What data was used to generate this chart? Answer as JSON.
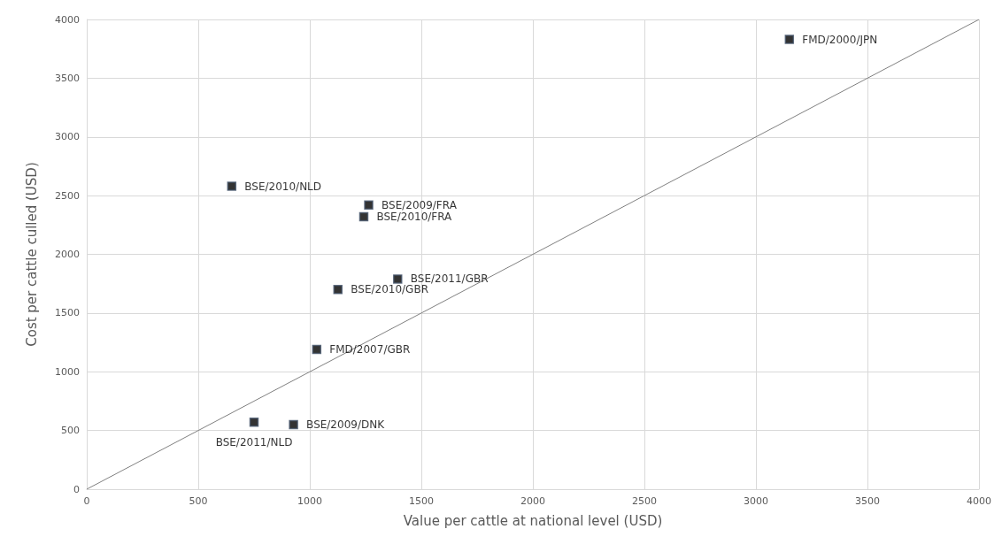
{
  "chart_data": {
    "type": "scatter",
    "xlabel": "Value per cattle at national level (USD)",
    "ylabel": "Cost per cattle culled (USD)",
    "xlim": [
      0,
      4000
    ],
    "xticks": [
      0,
      500,
      1000,
      1500,
      2000,
      2500,
      3000,
      3500,
      4000
    ],
    "ylim": [
      0,
      4000
    ],
    "yticks": [
      0,
      500,
      1000,
      1500,
      2000,
      2500,
      3000,
      3500,
      4000
    ],
    "grid": true,
    "marker": "square",
    "series": [
      {
        "type": "scatter",
        "color": "#000000",
        "x": [
          650,
          1264,
          1242,
          1394,
          1126,
          1031,
          750,
          927,
          3150
        ],
        "values": [
          2580,
          2420,
          2320,
          1790,
          1700,
          1190,
          570,
          550,
          3830
        ]
      },
      {
        "type": "line",
        "color": "#808080",
        "x": [
          0,
          4000
        ],
        "values": [
          0,
          4000
        ],
        "marker": "none",
        "line_style": "solid"
      }
    ],
    "annotations": [
      {
        "text": "BSE/2010/NLD",
        "x": 650,
        "y": 2580
      },
      {
        "text": "BSE/2009/FRA",
        "x": 1264,
        "y": 2420
      },
      {
        "text": "BSE/2010/FRA",
        "x": 1242,
        "y": 2320
      },
      {
        "text": "BSE/2011/GBR",
        "x": 1394,
        "y": 1790
      },
      {
        "text": "BSE/2010/GBR",
        "x": 1126,
        "y": 1700
      },
      {
        "text": "FMD/2007/GBR",
        "x": 1031,
        "y": 1190
      },
      {
        "text": "BSE/2011/NLD",
        "x": 750,
        "y": 570
      },
      {
        "text": "BSE/2009/DNK",
        "x": 927,
        "y": 550
      },
      {
        "text": "FMD/2000/JPN",
        "x": 3150,
        "y": 3830
      }
    ]
  }
}
